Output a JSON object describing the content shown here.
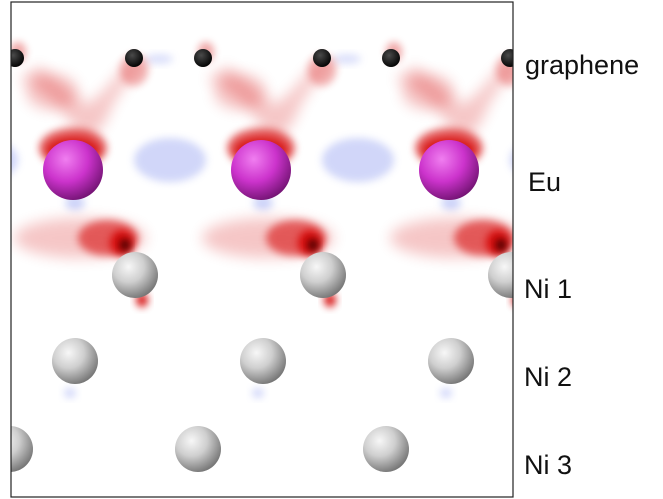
{
  "layers": [
    {
      "id": "graphene",
      "label": "graphene"
    },
    {
      "id": "eu",
      "label": "Eu"
    },
    {
      "id": "ni1",
      "label": "Ni 1"
    },
    {
      "id": "ni2",
      "label": "Ni 2"
    },
    {
      "id": "ni3",
      "label": "Ni 3"
    }
  ],
  "colors": {
    "charge_accumulation": "#d40000",
    "charge_depletion": "#9aa6f2",
    "carbon_atom": "#050505",
    "europium_atom": "#cc33cc",
    "nickel_atom": "#b8b8b8",
    "frame": "#222222"
  }
}
